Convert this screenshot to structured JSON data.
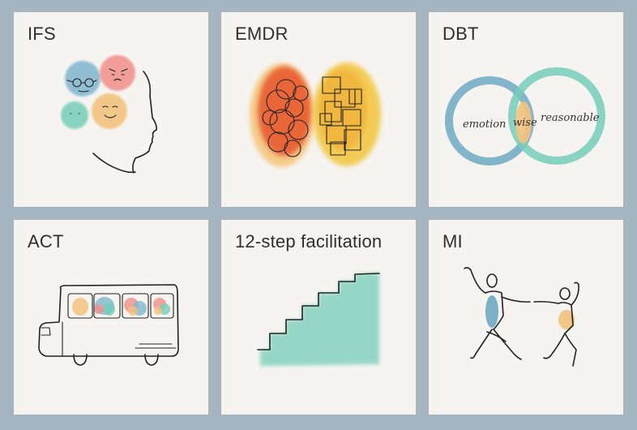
{
  "cards": [
    {
      "label": "IFS",
      "illustration": "head-with-parts-icon"
    },
    {
      "label": "EMDR",
      "illustration": "brain-hemispheres-icon"
    },
    {
      "label": "DBT",
      "illustration": "venn-diagram-icon",
      "venn": {
        "left": "emotion",
        "middle": "wise",
        "right": "reasonable"
      }
    },
    {
      "label": "ACT",
      "illustration": "bus-icon"
    },
    {
      "label": "12-step facilitation",
      "illustration": "staircase-icon"
    },
    {
      "label": "MI",
      "illustration": "dancing-figures-icon"
    }
  ],
  "colors": {
    "background": "#a5b5bf",
    "card": "#f6f4f1",
    "blue": "#7fb6d0",
    "teal": "#74cdb8",
    "pink": "#f28e8a",
    "orange": "#f3c27e",
    "red": "#e8542a",
    "yellow": "#f2c53a"
  }
}
